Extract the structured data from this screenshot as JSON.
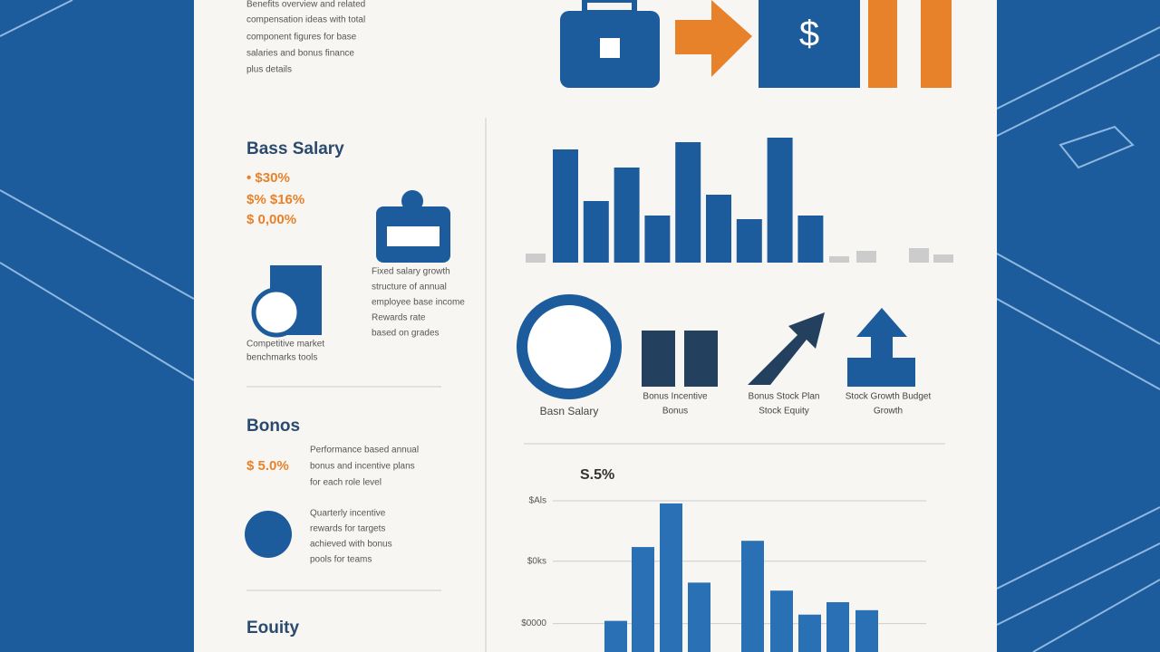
{
  "intro": [
    "Benefits overview and related",
    "compensation ideas with total",
    "component figures for base",
    "salaries and bonus finance",
    "plus details"
  ],
  "salary": {
    "title": "Bass Salary",
    "figures": [
      "• $30%",
      "$% $16%",
      "$ 0,00%"
    ],
    "notes": [
      "Fixed salary growth",
      "structure of annual",
      "employee base income",
      "Rewards rate",
      "based on grades"
    ],
    "caption": [
      "Competitive market",
      "benchmarks tools"
    ]
  },
  "bonus": {
    "title": "Bonos",
    "figure": "$ 5.0%",
    "notes": [
      "Performance based annual",
      "bonus and incentive plans",
      "for each role level"
    ],
    "notes2": [
      "Quarterly incentive",
      "rewards for targets",
      "achieved with bonus",
      "pools for teams"
    ]
  },
  "equity": {
    "title": "Eouity"
  },
  "top_chart": {
    "values": [
      125,
      68,
      105,
      52,
      133,
      75,
      48,
      138,
      52
    ],
    "minor": [
      10,
      7,
      13,
      16,
      9
    ]
  },
  "icons": [
    {
      "label": [
        "Basn Salary"
      ]
    },
    {
      "label": [
        "Bonus Incentive",
        "Bonus"
      ]
    },
    {
      "label": [
        "Bonus Stock Plan",
        "Stock Equity"
      ]
    },
    {
      "label": [
        "Stock Growth Budget",
        "Growth"
      ]
    }
  ],
  "bottom_chart": {
    "title": "S.5%",
    "ylim": [
      0,
      170
    ],
    "yticks": [
      {
        "value": 170,
        "label": "$Als"
      },
      {
        "value": 102,
        "label": "$0ks"
      },
      {
        "value": 32,
        "label": "$0000"
      }
    ],
    "values": [
      35,
      118,
      167,
      78,
      125,
      69,
      42,
      56,
      47
    ]
  }
}
